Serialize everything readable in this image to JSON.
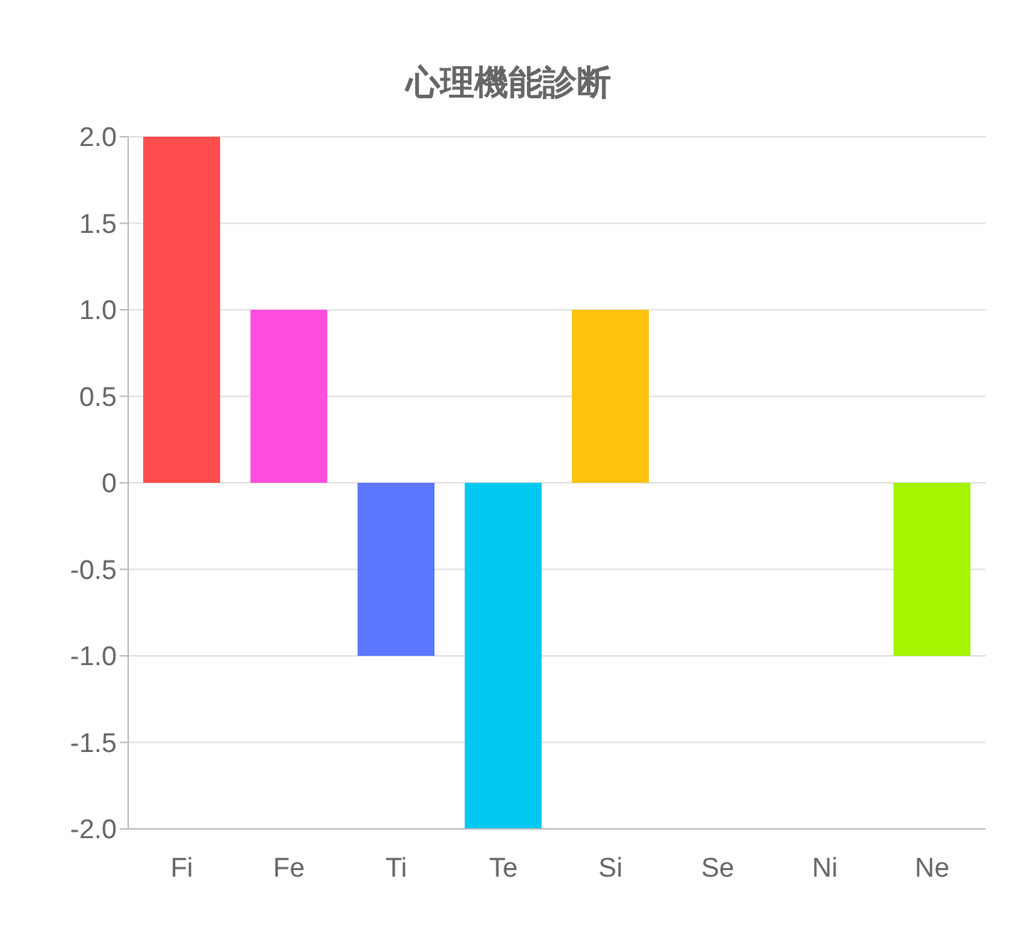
{
  "chart_data": {
    "type": "bar",
    "title": "心理機能診断",
    "categories": [
      "Fi",
      "Fe",
      "Ti",
      "Te",
      "Si",
      "Se",
      "Ni",
      "Ne"
    ],
    "values": [
      2,
      1,
      -1,
      -2,
      1,
      0,
      0,
      -1
    ],
    "colors": [
      "#ff4d4d",
      "#ff4de0",
      "#5b76ff",
      "#00c8f0",
      "#ffc20e",
      "#ff9933",
      "#9966ff",
      "#a3f500"
    ],
    "ylim": [
      -2,
      2
    ],
    "yticks": [
      {
        "value": 2,
        "label": "2.0"
      },
      {
        "value": 1.5,
        "label": "1.5"
      },
      {
        "value": 1,
        "label": "1.0"
      },
      {
        "value": 0.5,
        "label": "0.5"
      },
      0,
      {
        "value": -0.5,
        "label": "-0.5"
      },
      {
        "value": -1,
        "label": "-1.0"
      },
      {
        "value": -1.5,
        "label": "-1.5"
      },
      {
        "value": -2,
        "label": "-2.0"
      }
    ],
    "grid": "y"
  }
}
